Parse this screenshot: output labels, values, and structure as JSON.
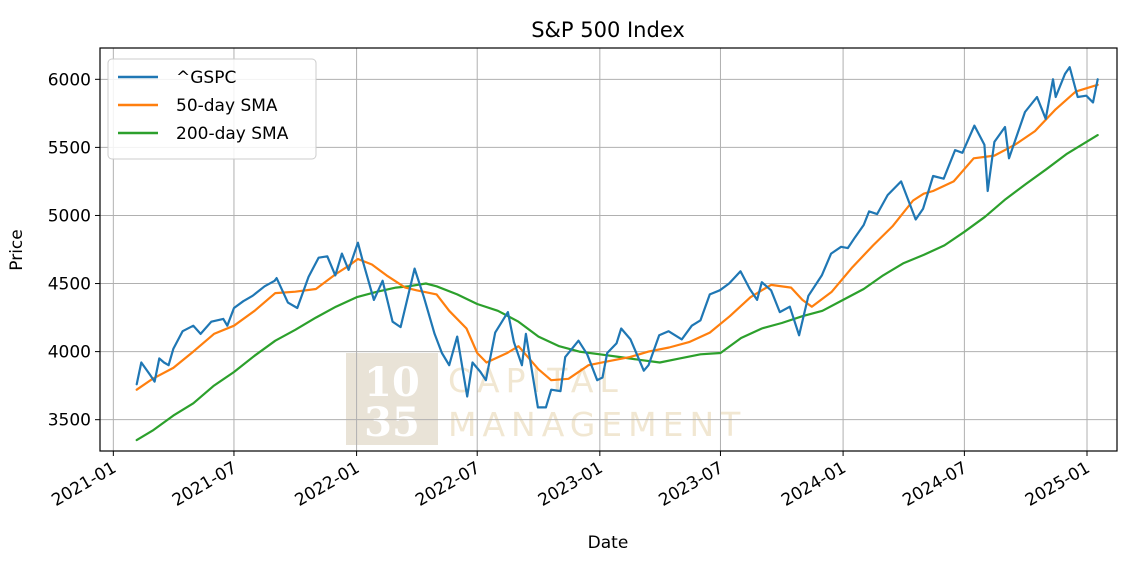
{
  "chart_data": {
    "type": "line",
    "title": "S&P 500 Index",
    "xlabel": "Date",
    "ylabel": "Price",
    "x_ticks": [
      "2021-01",
      "2021-07",
      "2022-01",
      "2022-07",
      "2023-01",
      "2023-07",
      "2024-01",
      "2024-07",
      "2025-01"
    ],
    "y_ticks": [
      3500,
      4000,
      4500,
      5000,
      5500,
      6000
    ],
    "xlim": [
      "2020-12-12",
      "2025-02-15"
    ],
    "ylim": [
      3270,
      6230
    ],
    "grid": true,
    "legend_position": "top-left",
    "series": [
      {
        "name": "^GSPC",
        "color": "#1f77b4",
        "x": [
          "2021-02-05",
          "2021-02-12",
          "2021-02-25",
          "2021-03-04",
          "2021-03-11",
          "2021-03-18",
          "2021-03-25",
          "2021-04-01",
          "2021-04-15",
          "2021-05-01",
          "2021-05-12",
          "2021-05-28",
          "2021-06-15",
          "2021-06-21",
          "2021-07-01",
          "2021-07-15",
          "2021-07-29",
          "2021-08-16",
          "2021-08-31",
          "2021-09-03",
          "2021-09-20",
          "2021-10-04",
          "2021-10-21",
          "2021-11-05",
          "2021-11-18",
          "2021-11-30",
          "2021-12-10",
          "2021-12-20",
          "2022-01-03",
          "2022-01-10",
          "2022-01-27",
          "2022-02-09",
          "2022-02-24",
          "2022-03-08",
          "2022-03-29",
          "2022-04-12",
          "2022-04-28",
          "2022-05-09",
          "2022-05-20",
          "2022-06-01",
          "2022-06-16",
          "2022-06-24",
          "2022-07-06",
          "2022-07-14",
          "2022-07-28",
          "2022-08-16",
          "2022-08-25",
          "2022-09-06",
          "2022-09-12",
          "2022-09-30",
          "2022-10-12",
          "2022-10-20",
          "2022-11-03",
          "2022-11-10",
          "2022-11-30",
          "2022-12-13",
          "2022-12-28",
          "2023-01-05",
          "2023-01-12",
          "2023-01-26",
          "2023-02-02",
          "2023-02-16",
          "2023-03-08",
          "2023-03-15",
          "2023-03-31",
          "2023-04-14",
          "2023-05-04",
          "2023-05-19",
          "2023-06-01",
          "2023-06-15",
          "2023-06-30",
          "2023-07-14",
          "2023-07-31",
          "2023-08-14",
          "2023-08-25",
          "2023-09-01",
          "2023-09-15",
          "2023-09-28",
          "2023-10-13",
          "2023-10-27",
          "2023-11-10",
          "2023-11-30",
          "2023-12-14",
          "2023-12-29",
          "2024-01-08",
          "2024-01-19",
          "2024-02-01",
          "2024-02-09",
          "2024-02-21",
          "2024-03-08",
          "2024-03-28",
          "2024-04-19",
          "2024-04-30",
          "2024-05-15",
          "2024-05-31",
          "2024-06-17",
          "2024-06-28",
          "2024-07-16",
          "2024-07-31",
          "2024-08-05",
          "2024-08-15",
          "2024-08-31",
          "2024-09-06",
          "2024-09-30",
          "2024-10-18",
          "2024-10-31",
          "2024-11-11",
          "2024-11-15",
          "2024-11-29",
          "2024-12-06",
          "2024-12-18",
          "2024-12-31",
          "2025-01-10",
          "2025-01-17"
        ],
        "values": [
          3760,
          3920,
          3830,
          3780,
          3950,
          3920,
          3900,
          4020,
          4150,
          4190,
          4130,
          4220,
          4240,
          4190,
          4320,
          4370,
          4410,
          4480,
          4520,
          4540,
          4360,
          4320,
          4550,
          4690,
          4700,
          4560,
          4720,
          4600,
          4800,
          4670,
          4380,
          4520,
          4220,
          4180,
          4610,
          4400,
          4130,
          3990,
          3900,
          4110,
          3670,
          3920,
          3850,
          3790,
          4140,
          4290,
          4070,
          3900,
          4130,
          3590,
          3590,
          3720,
          3710,
          3960,
          4080,
          3980,
          3790,
          3810,
          3990,
          4060,
          4170,
          4090,
          3860,
          3900,
          4120,
          4150,
          4090,
          4190,
          4230,
          4420,
          4450,
          4500,
          4590,
          4460,
          4380,
          4510,
          4450,
          4290,
          4330,
          4120,
          4410,
          4560,
          4720,
          4770,
          4760,
          4840,
          4930,
          5030,
          5010,
          5150,
          5250,
          4970,
          5050,
          5290,
          5270,
          5480,
          5460,
          5660,
          5520,
          5180,
          5540,
          5650,
          5420,
          5760,
          5870,
          5710,
          6000,
          5870,
          6040,
          6090,
          5870,
          5880,
          5830,
          6000
        ]
      },
      {
        "name": "50-day SMA",
        "color": "#ff7f0e",
        "x": [
          "2021-02-05",
          "2021-03-01",
          "2021-04-01",
          "2021-05-01",
          "2021-06-01",
          "2021-07-01",
          "2021-08-01",
          "2021-09-01",
          "2021-10-01",
          "2021-11-01",
          "2021-12-01",
          "2021-12-20",
          "2022-01-03",
          "2022-01-24",
          "2022-02-15",
          "2022-03-15",
          "2022-04-01",
          "2022-05-01",
          "2022-05-20",
          "2022-06-15",
          "2022-07-01",
          "2022-07-15",
          "2022-08-15",
          "2022-09-01",
          "2022-10-01",
          "2022-10-20",
          "2022-11-15",
          "2022-12-15",
          "2023-01-15",
          "2023-02-15",
          "2023-03-15",
          "2023-04-15",
          "2023-05-15",
          "2023-06-15",
          "2023-07-15",
          "2023-08-15",
          "2023-09-01",
          "2023-09-15",
          "2023-10-15",
          "2023-11-01",
          "2023-11-15",
          "2023-12-15",
          "2024-01-15",
          "2024-02-15",
          "2024-03-15",
          "2024-04-15",
          "2024-05-01",
          "2024-05-15",
          "2024-06-15",
          "2024-07-15",
          "2024-08-15",
          "2024-09-15",
          "2024-10-15",
          "2024-11-15",
          "2024-12-15",
          "2025-01-17"
        ],
        "values": [
          3720,
          3800,
          3880,
          4000,
          4130,
          4190,
          4300,
          4430,
          4440,
          4460,
          4570,
          4630,
          4680,
          4640,
          4560,
          4470,
          4450,
          4420,
          4300,
          4170,
          3990,
          3920,
          3990,
          4040,
          3870,
          3790,
          3800,
          3900,
          3930,
          3960,
          4000,
          4030,
          4070,
          4140,
          4260,
          4400,
          4450,
          4490,
          4470,
          4380,
          4330,
          4440,
          4620,
          4780,
          4920,
          5110,
          5160,
          5180,
          5250,
          5420,
          5440,
          5520,
          5620,
          5780,
          5910,
          5960
        ]
      },
      {
        "name": "200-day SMA",
        "color": "#2ca02c",
        "x": [
          "2021-02-05",
          "2021-03-01",
          "2021-04-01",
          "2021-05-01",
          "2021-06-01",
          "2021-07-01",
          "2021-08-01",
          "2021-09-01",
          "2021-10-01",
          "2021-11-01",
          "2021-12-01",
          "2022-01-01",
          "2022-02-01",
          "2022-03-01",
          "2022-03-20",
          "2022-04-15",
          "2022-05-01",
          "2022-06-01",
          "2022-07-01",
          "2022-08-01",
          "2022-09-01",
          "2022-10-01",
          "2022-11-01",
          "2022-12-01",
          "2023-01-01",
          "2023-02-01",
          "2023-03-01",
          "2023-04-01",
          "2023-05-01",
          "2023-06-01",
          "2023-07-01",
          "2023-08-01",
          "2023-09-01",
          "2023-10-01",
          "2023-11-01",
          "2023-12-01",
          "2024-01-01",
          "2024-02-01",
          "2024-03-01",
          "2024-04-01",
          "2024-05-01",
          "2024-06-01",
          "2024-07-01",
          "2024-08-01",
          "2024-09-01",
          "2024-10-01",
          "2024-11-01",
          "2024-12-01",
          "2025-01-17"
        ],
        "values": [
          3350,
          3420,
          3530,
          3620,
          3750,
          3850,
          3970,
          4080,
          4160,
          4250,
          4330,
          4400,
          4440,
          4470,
          4480,
          4500,
          4480,
          4420,
          4350,
          4300,
          4220,
          4110,
          4040,
          4000,
          3980,
          3960,
          3940,
          3920,
          3950,
          3980,
          3990,
          4100,
          4170,
          4210,
          4260,
          4300,
          4380,
          4460,
          4560,
          4650,
          4710,
          4780,
          4880,
          4990,
          5120,
          5230,
          5340,
          5450,
          5590
        ]
      }
    ]
  },
  "watermark": {
    "line1": "10",
    "line2": "35",
    "word1": "CAPITAL",
    "word2": "MANAGEMENT"
  }
}
